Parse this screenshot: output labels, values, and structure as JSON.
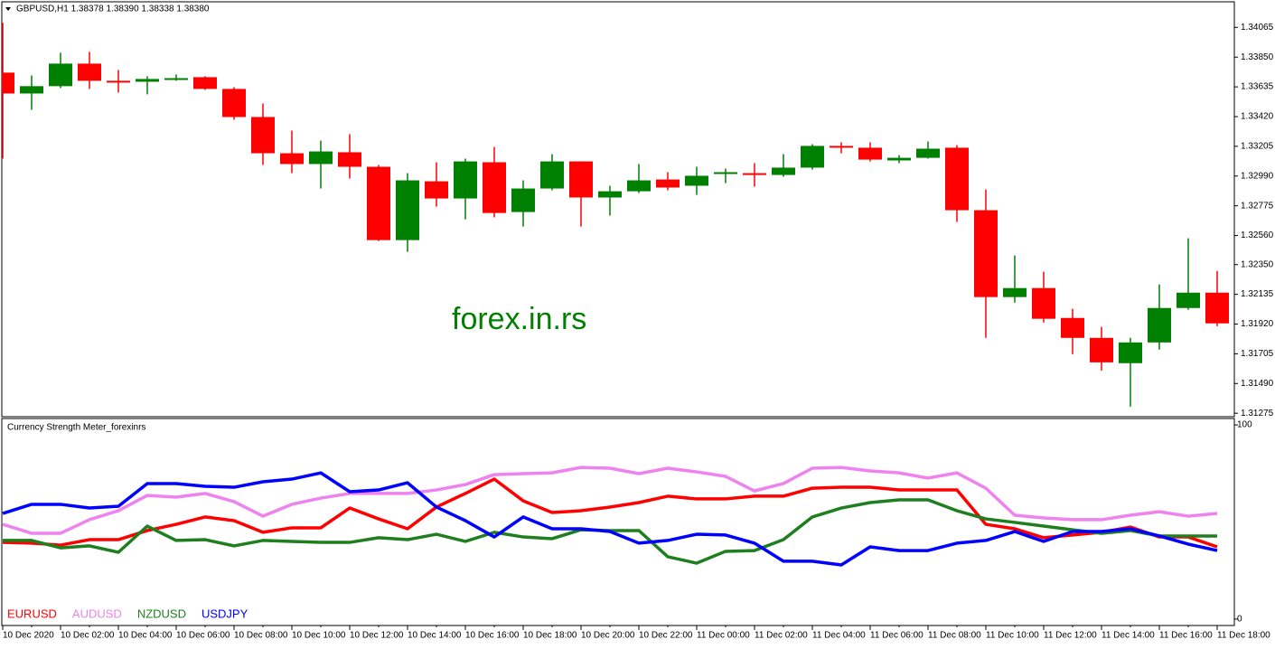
{
  "chart_data": [
    {
      "type": "candlestick",
      "title": "GBPUSD,H1  1.38378 1.38390 1.38338 1.38380",
      "annotation": "forex.in.rs",
      "up_color": "#008000",
      "down_color": "#ff0000",
      "open": [
        1.33738,
        1.33587,
        1.3364,
        1.33803,
        1.33679,
        1.33672,
        1.33692,
        1.33705,
        1.3362,
        1.33417,
        1.33155,
        1.33077,
        1.33162,
        1.33057,
        1.32527,
        1.32952,
        1.32828,
        1.3309,
        1.3273,
        1.329,
        1.33096,
        1.32835,
        1.3288,
        1.32965,
        1.3292,
        1.33005,
        1.33011,
        1.32998,
        1.33051,
        1.33208,
        1.33195,
        1.33103,
        1.33122,
        1.33195,
        1.32743,
        1.32115,
        1.3218,
        1.31964,
        1.3182,
        1.31637,
        1.31787,
        1.32036,
        1.32147
      ],
      "high": [
        1.34098,
        1.33718,
        1.33882,
        1.33888,
        1.33757,
        1.33712,
        1.33725,
        1.33712,
        1.33633,
        1.33515,
        1.33319,
        1.33247,
        1.33293,
        1.3307,
        1.33011,
        1.3309,
        1.33116,
        1.33201,
        1.32959,
        1.33149,
        1.33096,
        1.3292,
        1.33077,
        1.33018,
        1.33057,
        1.33044,
        1.33083,
        1.33149,
        1.33221,
        1.33234,
        1.33234,
        1.33142,
        1.3324,
        1.33214,
        1.32893,
        1.32416,
        1.32298,
        1.3203,
        1.31899,
        1.3182,
        1.32206,
        1.3254,
        1.32304
      ],
      "low": [
        1.33116,
        1.33469,
        1.33626,
        1.3362,
        1.33594,
        1.33581,
        1.33679,
        1.33613,
        1.33397,
        1.3307,
        1.33011,
        1.329,
        1.32972,
        1.3252,
        1.32442,
        1.32769,
        1.32677,
        1.32691,
        1.32625,
        1.32887,
        1.32625,
        1.32704,
        1.32867,
        1.32887,
        1.32854,
        1.32939,
        1.32913,
        1.32985,
        1.33037,
        1.33155,
        1.33096,
        1.33083,
        1.33116,
        1.32658,
        1.3182,
        1.32075,
        1.31931,
        1.31702,
        1.31584,
        1.31323,
        1.31735,
        1.32023,
        1.31905
      ],
      "close": [
        1.33587,
        1.3364,
        1.33803,
        1.33679,
        1.33672,
        1.33692,
        1.33698,
        1.3362,
        1.33417,
        1.33155,
        1.33077,
        1.33168,
        1.33057,
        1.32527,
        1.32959,
        1.32828,
        1.33096,
        1.32723,
        1.329,
        1.33096,
        1.32835,
        1.3288,
        1.32959,
        1.32907,
        1.32992,
        1.33018,
        1.32998,
        1.33051,
        1.33208,
        1.33195,
        1.33109,
        1.33122,
        1.33188,
        1.32743,
        1.32115,
        1.3218,
        1.31958,
        1.3182,
        1.31643,
        1.31787,
        1.32036,
        1.32147,
        1.31925
      ],
      "ylim": [
        1.3125,
        1.3425
      ],
      "yticks": [
        1.34065,
        {
          "value": 1.3385,
          "label": "1.33850"
        },
        1.33635,
        {
          "value": 1.3342,
          "label": "1.33420"
        },
        1.33205,
        {
          "value": 1.3299,
          "label": "1.32990"
        },
        1.32775,
        {
          "value": 1.3256,
          "label": "1.32560"
        },
        {
          "value": 1.3235,
          "label": "1.32350"
        },
        1.32135,
        {
          "value": 1.3192,
          "label": "1.31920"
        },
        1.31705,
        {
          "value": 1.3149,
          "label": "1.31490"
        },
        1.31275
      ]
    },
    {
      "type": "line",
      "title": "Currency Strength Meter_forexinrs",
      "categories": [
        "10 Dec 2020",
        null,
        "10 Dec 02:00",
        null,
        "10 Dec 04:00",
        null,
        "10 Dec 06:00",
        null,
        "10 Dec 08:00",
        null,
        "10 Dec 10:00",
        null,
        "10 Dec 12:00",
        null,
        "10 Dec 14:00",
        null,
        "10 Dec 16:00",
        null,
        "10 Dec 18:00",
        null,
        "10 Dec 20:00",
        null,
        "10 Dec 22:00",
        null,
        "11 Dec 00:00",
        null,
        "11 Dec 02:00",
        null,
        "11 Dec 04:00",
        null,
        "11 Dec 06:00",
        null,
        "11 Dec 08:00",
        null,
        "11 Dec 10:00",
        null,
        "11 Dec 12:00",
        null,
        "11 Dec 14:00",
        null,
        "11 Dec 16:00",
        null,
        "11 Dec 18:00"
      ],
      "series": [
        {
          "name": "EURUSD",
          "color": "#ff0000",
          "values": [
            39.5,
            39.1,
            38.1,
            40.9,
            40.9,
            45.6,
            48.8,
            52.6,
            50.7,
            44.7,
            47.0,
            47.0,
            57.2,
            51.6,
            46.5,
            57.7,
            64.7,
            72.1,
            60.9,
            54.9,
            55.8,
            57.7,
            60.0,
            63.3,
            61.9,
            61.9,
            63.3,
            63.3,
            67.4,
            67.9,
            67.9,
            66.5,
            66.5,
            66.5,
            48.8,
            46.5,
            41.9,
            43.3,
            44.7,
            47.4,
            42.3,
            42.3,
            37.2
          ]
        },
        {
          "name": "AUDUSD",
          "color": "#ee82ee",
          "values": [
            48.8,
            44.2,
            44.2,
            51.2,
            55.8,
            63.7,
            62.8,
            64.7,
            60.5,
            53.0,
            59.1,
            62.3,
            64.7,
            64.7,
            64.7,
            66.5,
            69.3,
            74.4,
            74.9,
            75.3,
            78.1,
            77.7,
            74.9,
            77.7,
            75.8,
            73.5,
            66.0,
            69.8,
            77.7,
            78.1,
            76.3,
            75.3,
            72.6,
            75.3,
            67.4,
            53.5,
            52.1,
            51.2,
            51.2,
            53.5,
            55.3,
            53.0,
            54.4
          ]
        },
        {
          "name": "NZDUSD",
          "color": "#1e7f1e",
          "values": [
            40.5,
            40.5,
            36.7,
            37.7,
            34.4,
            47.9,
            40.5,
            40.9,
            37.7,
            40.5,
            40.0,
            39.5,
            39.5,
            41.9,
            40.9,
            43.7,
            40.0,
            44.7,
            42.3,
            41.4,
            46.0,
            45.6,
            45.6,
            32.1,
            28.8,
            34.9,
            35.3,
            40.9,
            52.6,
            57.2,
            60.0,
            61.4,
            61.4,
            55.8,
            51.6,
            49.8,
            47.9,
            46.0,
            44.2,
            45.6,
            42.8,
            42.8,
            42.8
          ]
        },
        {
          "name": "USDJPY",
          "color": "#0000ff",
          "values": [
            54.4,
            59.1,
            59.1,
            57.2,
            58.1,
            69.8,
            69.8,
            68.4,
            67.9,
            70.7,
            72.1,
            75.3,
            65.6,
            66.5,
            70.2,
            57.7,
            50.7,
            42.3,
            52.6,
            46.5,
            46.5,
            45.1,
            39.1,
            40.5,
            43.7,
            43.3,
            39.1,
            29.8,
            29.8,
            27.9,
            37.2,
            35.3,
            35.3,
            39.1,
            40.5,
            45.1,
            40.0,
            45.1,
            45.1,
            46.5,
            42.8,
            38.6,
            35.3
          ]
        }
      ],
      "ylim": [
        -3.3,
        103.3
      ],
      "yticks": [
        0,
        100
      ]
    }
  ]
}
